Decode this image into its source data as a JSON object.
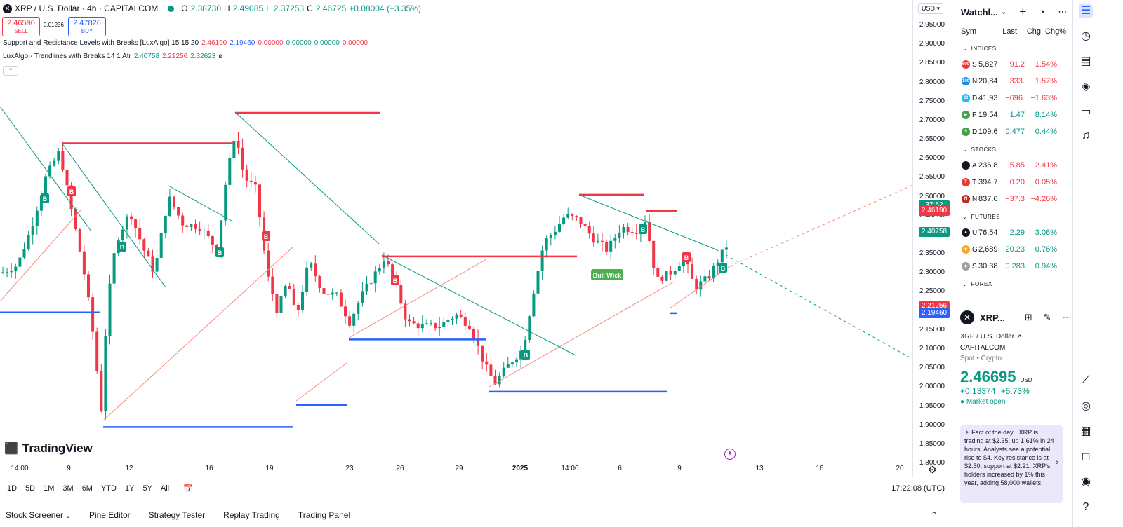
{
  "header": {
    "symbol_title": "XRP / U.S. Dollar · 4h · CAPITALCOM",
    "ohlc": [
      {
        "k": "O",
        "v": "2.38730"
      },
      {
        "k": "H",
        "v": "2.49085"
      },
      {
        "k": "L",
        "v": "2.37253"
      },
      {
        "k": "C",
        "v": "2.46725"
      }
    ],
    "change": "+0.08004 (+3.35%)",
    "sell_price": "2.46590",
    "sell_label": "SELL",
    "buy_price": "2.47826",
    "buy_label": "BUY",
    "spread": "0.01236"
  },
  "indicators": {
    "ind1_name": "Support and Resistance Levels with Breaks [LuxAlgo] 15 15 20",
    "ind1_values": [
      "2.46190",
      "2.19460",
      "0.00000",
      "0.00000",
      "0.00000",
      "0.00000"
    ],
    "ind2_name": "LuxAlgo - Trendlines with Breaks 14 1 Atr",
    "ind2_values": [
      "2.40758",
      "2.21256",
      "2.32623",
      "ø"
    ]
  },
  "currency": "USD",
  "price_axis": {
    "ticks": [
      "2.95000",
      "2.90000",
      "2.85000",
      "2.80000",
      "2.75000",
      "2.70000",
      "2.65000",
      "2.60000",
      "2.55000",
      "2.50000",
      "2.45000",
      "2.40000",
      "2.35000",
      "2.30000",
      "2.25000",
      "2.20000",
      "2.15000",
      "2.10000",
      "2.05000",
      "2.00000",
      "1.95000",
      "1.90000",
      "1.85000",
      "1.80000"
    ],
    "tags": [
      {
        "text": "37:52",
        "value": 2.478,
        "color": "#089981"
      },
      {
        "text": "2.46190",
        "value": 2.4619,
        "color": "#f23645"
      },
      {
        "text": "2.40758",
        "value": 2.40758,
        "color": "#089981"
      },
      {
        "text": "2.21256",
        "value": 2.21256,
        "color": "#f23645"
      },
      {
        "text": "2.19460",
        "value": 2.1946,
        "color": "#2962ff"
      }
    ]
  },
  "time_axis": [
    "14:00",
    "9",
    "12",
    "16",
    "19",
    "23",
    "26",
    "29",
    "2025",
    "14:00",
    "6",
    "9",
    "13",
    "16",
    "20"
  ],
  "bull_wick_label": "Bull Wick",
  "logo_text": "TradingView",
  "range_buttons": [
    "1D",
    "5D",
    "1M",
    "3M",
    "6M",
    "YTD",
    "1Y",
    "5Y",
    "All"
  ],
  "clock": "17:22:08 (UTC)",
  "bottom_tabs": [
    "Stock Screener",
    "Pine Editor",
    "Strategy Tester",
    "Replay Trading",
    "Trading Panel"
  ],
  "watchlist": {
    "title": "Watchl...",
    "columns": [
      "Sym",
      "Last",
      "Chg",
      "Chg%"
    ],
    "sections": [
      {
        "name": "INDICES",
        "rows": [
          {
            "icon": "500",
            "color": "#e53935",
            "sym": "S",
            "last": "5,827",
            "chg": "−91.2",
            "pct": "−1.54%",
            "dir": "neg"
          },
          {
            "icon": "100",
            "color": "#1e88e5",
            "sym": "N",
            "last": "20,84",
            "chg": "−333.",
            "pct": "−1.57%",
            "dir": "neg"
          },
          {
            "icon": "30",
            "color": "#29b6f6",
            "sym": "D",
            "last": "41,93",
            "chg": "−696.",
            "pct": "−1.63%",
            "dir": "neg"
          },
          {
            "icon": "▶",
            "color": "#43a047",
            "sym": "P",
            "last": "19.54",
            "chg": "1.47",
            "pct": "8.14%",
            "dir": "pos"
          },
          {
            "icon": "$",
            "color": "#43a047",
            "sym": "D",
            "last": "109.6",
            "chg": "0.477",
            "pct": "0.44%",
            "dir": "pos"
          }
        ]
      },
      {
        "name": "STOCKS",
        "rows": [
          {
            "icon": "",
            "color": "#131722",
            "sym": "A",
            "last": "236.8",
            "chg": "−5.85",
            "pct": "−2.41%",
            "dir": "neg"
          },
          {
            "icon": "T",
            "color": "#e53935",
            "sym": "T",
            "last": "394.7",
            "chg": "−0.20",
            "pct": "−0.05%",
            "dir": "neg"
          },
          {
            "icon": "N",
            "color": "#c62828",
            "sym": "N",
            "last": "837.6",
            "chg": "−37.3",
            "pct": "−4.26%",
            "dir": "neg"
          }
        ]
      },
      {
        "name": "FUTURES",
        "rows": [
          {
            "icon": "●",
            "color": "#131722",
            "sym": "U",
            "last": "76.54",
            "chg": "2.29",
            "pct": "3.08%",
            "dir": "pos"
          },
          {
            "icon": "◆",
            "color": "#f9a825",
            "sym": "G",
            "last": "2,689",
            "chg": "20.23",
            "pct": "0.76%",
            "dir": "pos"
          },
          {
            "icon": "◆",
            "color": "#9e9e9e",
            "sym": "S",
            "last": "30.38",
            "chg": "0.283",
            "pct": "0.94%",
            "dir": "pos"
          }
        ]
      },
      {
        "name": "FOREX",
        "rows": []
      }
    ]
  },
  "details": {
    "ticker": "XRP...",
    "name": "XRP / U.S. Dollar",
    "exchange": "CAPITALCOM",
    "category": "Spot • Crypto",
    "price": "2.46695",
    "price_currency": "USD",
    "change": "+0.13374",
    "change_pct": "+5.73%",
    "status": "Market open",
    "fact_title": "Fact of the day",
    "fact_text": "XRP is trading at $2.35, up 1.61% in 24 hours. Analysts see a potential rise to $4. Key resistance is at $2.50, support at $2.21. XRP's holders increased by 1% this year, adding 58,000 wallets."
  },
  "colors": {
    "up": "#089981",
    "down": "#f23645",
    "support": "#2962ff",
    "resistance": "#f23645"
  }
}
